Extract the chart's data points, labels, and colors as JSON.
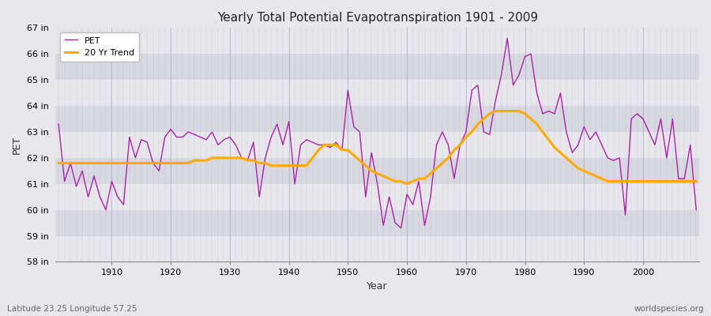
{
  "title": "Yearly Total Potential Evapotranspiration 1901 - 2009",
  "xlabel": "Year",
  "ylabel": "PET",
  "subtitle_lat": "Latitude 23.25 Longitude 57.25",
  "watermark": "worldspecies.org",
  "ylim": [
    58,
    67
  ],
  "ytick_labels": [
    "58 in",
    "59 in",
    "60 in",
    "61 in",
    "62 in",
    "63 in",
    "64 in",
    "65 in",
    "66 in",
    "67 in"
  ],
  "ytick_values": [
    58,
    59,
    60,
    61,
    62,
    63,
    64,
    65,
    66,
    67
  ],
  "pet_color": "#aa22aa",
  "trend_color": "#ffaa00",
  "bg_color": "#e8e8ec",
  "band_light": "#e8e8ec",
  "band_dark": "#d8d8e0",
  "grid_color": "#cccccc",
  "years": [
    1901,
    1902,
    1903,
    1904,
    1905,
    1906,
    1907,
    1908,
    1909,
    1910,
    1911,
    1912,
    1913,
    1914,
    1915,
    1916,
    1917,
    1918,
    1919,
    1920,
    1921,
    1922,
    1923,
    1924,
    1925,
    1926,
    1927,
    1928,
    1929,
    1930,
    1931,
    1932,
    1933,
    1934,
    1935,
    1936,
    1937,
    1938,
    1939,
    1940,
    1941,
    1942,
    1943,
    1944,
    1945,
    1946,
    1947,
    1948,
    1949,
    1950,
    1951,
    1952,
    1953,
    1954,
    1955,
    1956,
    1957,
    1958,
    1959,
    1960,
    1961,
    1962,
    1963,
    1964,
    1965,
    1966,
    1967,
    1968,
    1969,
    1970,
    1971,
    1972,
    1973,
    1974,
    1975,
    1976,
    1977,
    1978,
    1979,
    1980,
    1981,
    1982,
    1983,
    1984,
    1985,
    1986,
    1987,
    1988,
    1989,
    1990,
    1991,
    1992,
    1993,
    1994,
    1995,
    1996,
    1997,
    1998,
    1999,
    2000,
    2001,
    2002,
    2003,
    2004,
    2005,
    2006,
    2007,
    2008,
    2009
  ],
  "pet_values": [
    63.3,
    61.1,
    61.8,
    60.9,
    61.5,
    60.5,
    61.3,
    60.5,
    60.0,
    61.1,
    60.5,
    60.2,
    62.8,
    62.0,
    62.7,
    62.6,
    61.8,
    61.5,
    62.8,
    63.1,
    62.8,
    62.8,
    63.0,
    62.9,
    62.8,
    62.7,
    63.0,
    62.5,
    62.7,
    62.8,
    62.5,
    62.0,
    61.9,
    62.6,
    60.5,
    62.0,
    62.8,
    63.3,
    62.5,
    63.4,
    61.0,
    62.5,
    62.7,
    62.6,
    62.5,
    62.5,
    62.4,
    62.6,
    62.3,
    64.6,
    63.2,
    63.0,
    60.5,
    62.2,
    61.0,
    59.4,
    60.5,
    59.5,
    59.3,
    60.6,
    60.2,
    61.1,
    59.4,
    60.5,
    62.5,
    63.0,
    62.5,
    61.2,
    62.5,
    63.0,
    64.6,
    64.8,
    63.0,
    62.9,
    64.2,
    65.2,
    66.6,
    64.8,
    65.2,
    65.9,
    66.0,
    64.5,
    63.7,
    63.8,
    63.7,
    64.5,
    63.0,
    62.2,
    62.5,
    63.2,
    62.7,
    63.0,
    62.5,
    62.0,
    61.9,
    62.0,
    59.8,
    63.5,
    63.7,
    63.5,
    63.0,
    62.5,
    63.5,
    62.0,
    63.5,
    61.2,
    61.2,
    62.5,
    60.0
  ],
  "trend_values": [
    61.8,
    61.8,
    61.8,
    61.8,
    61.8,
    61.8,
    61.8,
    61.8,
    61.8,
    61.8,
    61.8,
    61.8,
    61.8,
    61.8,
    61.8,
    61.8,
    61.8,
    61.8,
    61.8,
    61.8,
    61.8,
    61.8,
    61.8,
    61.9,
    61.9,
    61.9,
    62.0,
    62.0,
    62.0,
    62.0,
    62.0,
    62.0,
    61.9,
    61.9,
    61.8,
    61.8,
    61.7,
    61.7,
    61.7,
    61.7,
    61.7,
    61.7,
    61.7,
    62.0,
    62.3,
    62.5,
    62.5,
    62.5,
    62.3,
    62.3,
    62.1,
    61.9,
    61.7,
    61.5,
    61.4,
    61.3,
    61.2,
    61.1,
    61.1,
    61.0,
    61.1,
    61.2,
    61.2,
    61.4,
    61.6,
    61.8,
    62.0,
    62.3,
    62.5,
    62.8,
    63.0,
    63.3,
    63.5,
    63.7,
    63.8,
    63.8,
    63.8,
    63.8,
    63.8,
    63.7,
    63.5,
    63.3,
    63.0,
    62.7,
    62.4,
    62.2,
    62.0,
    61.8,
    61.6,
    61.5,
    61.4,
    61.3,
    61.2,
    61.1,
    61.1,
    61.1,
    61.1,
    61.1,
    61.1,
    61.1,
    61.1,
    61.1,
    61.1,
    61.1,
    61.1,
    61.1,
    61.1,
    61.1,
    61.1
  ]
}
